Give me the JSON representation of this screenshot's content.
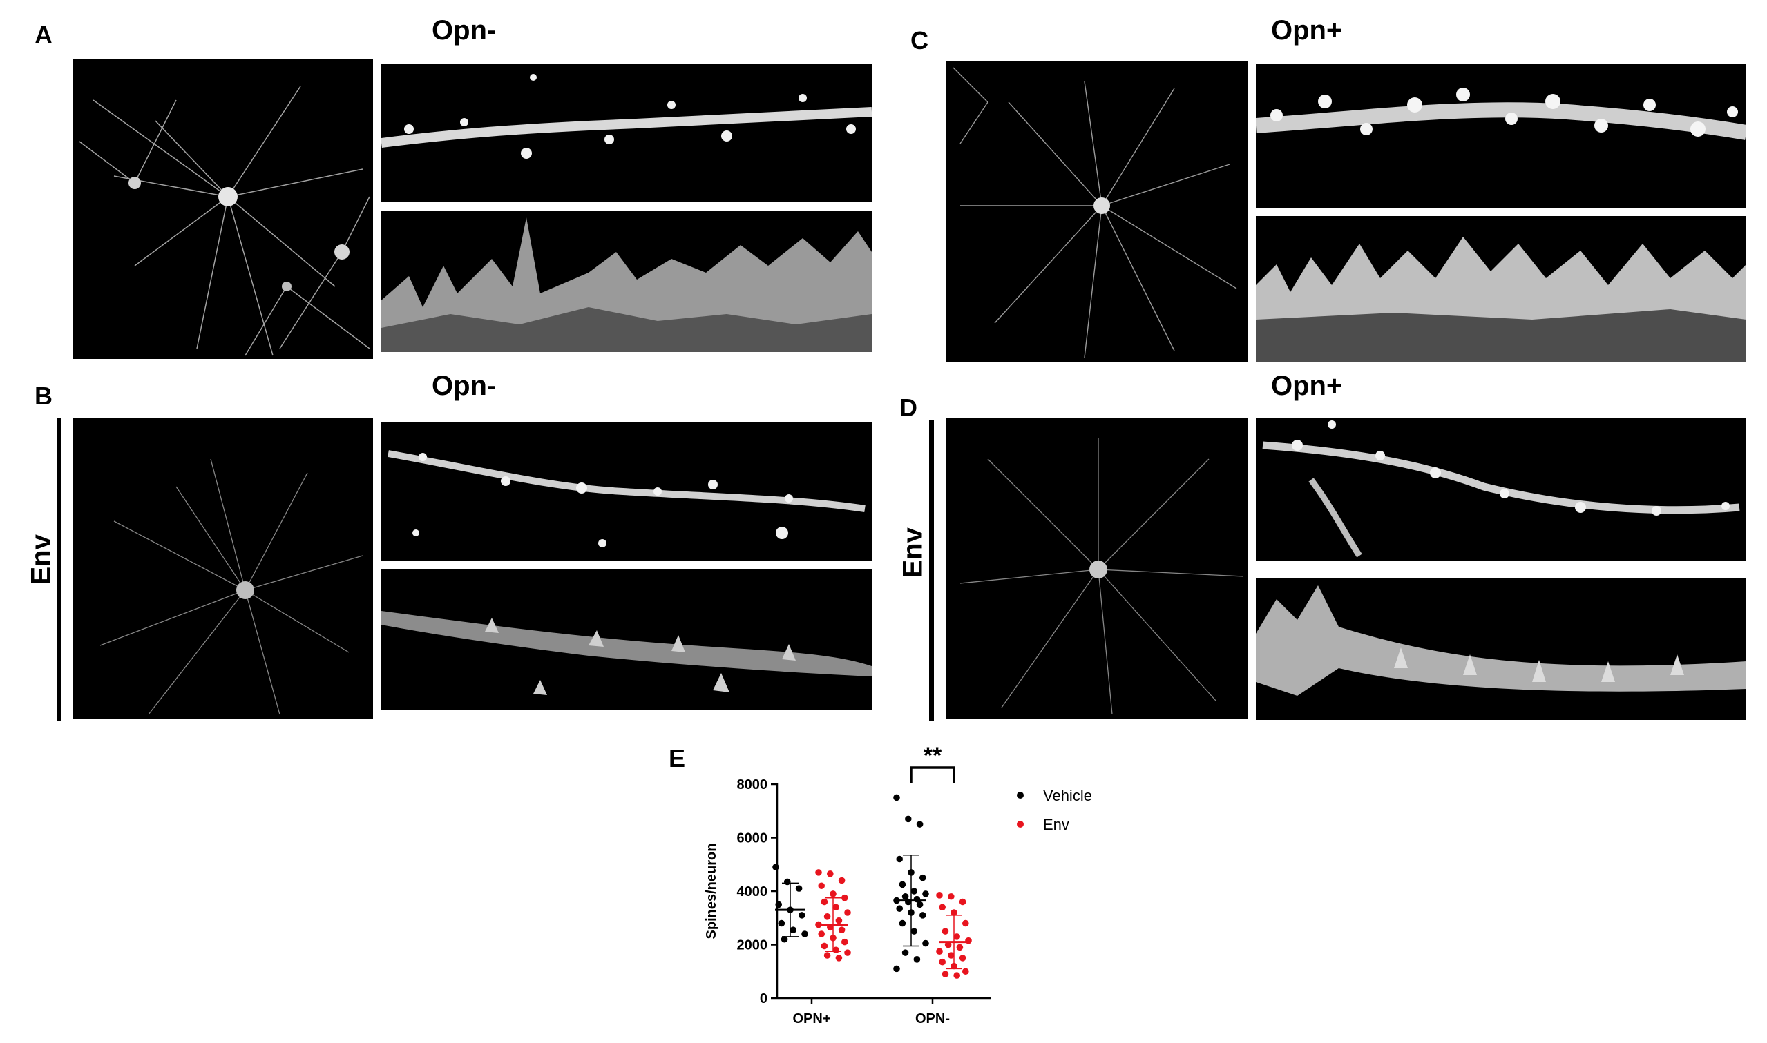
{
  "panels": {
    "A": {
      "letter": "A",
      "title": "Opn-"
    },
    "B": {
      "letter": "B",
      "title": "Opn-",
      "group": "Env"
    },
    "C": {
      "letter": "C",
      "title": "Opn+"
    },
    "D": {
      "letter": "D",
      "title": "Opn+",
      "group": "Env"
    },
    "E": {
      "letter": "E"
    }
  },
  "colors": {
    "vehicle": "#000000",
    "env": "#e8141e",
    "image_bg": "#000000"
  },
  "chart_data": {
    "type": "scatter",
    "ylabel": "Spines/neuron",
    "xlabel": "",
    "ylim": [
      0,
      8000
    ],
    "yticks": [
      0,
      2000,
      4000,
      6000,
      8000
    ],
    "categories": [
      "OPN+",
      "OPN-"
    ],
    "legend": {
      "placement": "right"
    },
    "significance": {
      "label": "**",
      "between": [
        "OPN-/Vehicle",
        "OPN-/Env"
      ]
    },
    "series": [
      {
        "name": "Vehicle",
        "color": "#000000",
        "groups": [
          {
            "category": "OPN+",
            "mean": 3300,
            "sd": 1000,
            "values": [
              4900,
              4350,
              4100,
              3500,
              3300,
              3100,
              2800,
              2550,
              2400,
              2200
            ]
          },
          {
            "category": "OPN-",
            "mean": 3650,
            "sd": 1700,
            "values": [
              7500,
              6700,
              6500,
              5200,
              4700,
              4500,
              4250,
              4000,
              3900,
              3800,
              3700,
              3650,
              3600,
              3500,
              3350,
              3200,
              3100,
              2800,
              2500,
              2050,
              1700,
              1450,
              1100
            ]
          }
        ]
      },
      {
        "name": "Env",
        "color": "#e8141e",
        "groups": [
          {
            "category": "OPN+",
            "mean": 2750,
            "sd": 1000,
            "values": [
              4700,
              4650,
              4400,
              4200,
              3900,
              3750,
              3600,
              3400,
              3200,
              3050,
              2900,
              2750,
              2650,
              2550,
              2400,
              2250,
              2100,
              1950,
              1800,
              1700,
              1600,
              1500
            ]
          },
          {
            "category": "OPN-",
            "mean": 2100,
            "sd": 1000,
            "values": [
              3850,
              3800,
              3600,
              3400,
              3200,
              2800,
              2500,
              2300,
              2150,
              2000,
              1900,
              1750,
              1600,
              1500,
              1350,
              1200,
              1000,
              900,
              850
            ]
          }
        ]
      }
    ]
  }
}
